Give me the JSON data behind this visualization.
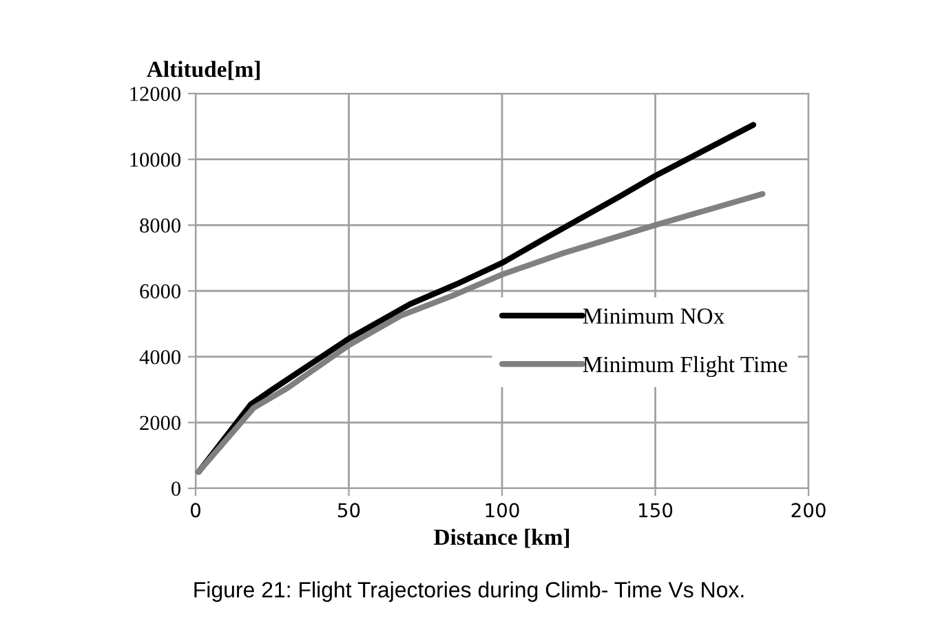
{
  "chart_data": {
    "type": "line",
    "xlabel": "Distance [km]",
    "ylabel": "Altitude[m]",
    "xlim": [
      0,
      200
    ],
    "xticks": [
      0,
      50,
      100,
      150,
      200
    ],
    "ylim": [
      0,
      12000
    ],
    "yticks": [
      0,
      2000,
      4000,
      6000,
      8000,
      10000,
      12000
    ],
    "grid": true,
    "legend": "right",
    "marker": "none",
    "line_style": "solid",
    "series": [
      {
        "name": "Minimum NOx",
        "color": "#000000",
        "x": [
          1,
          18,
          25,
          50,
          70,
          85,
          100,
          115,
          138,
          150,
          182
        ],
        "values": [
          500,
          2550,
          3000,
          4550,
          5600,
          6200,
          6850,
          7650,
          8850,
          9500,
          11050
        ]
      },
      {
        "name": "Minimum Flight Time",
        "color": "#808080",
        "x": [
          1,
          19,
          30,
          50,
          67,
          85,
          100,
          120,
          150,
          185
        ],
        "values": [
          500,
          2450,
          3050,
          4350,
          5250,
          5900,
          6500,
          7150,
          8000,
          8950
        ]
      }
    ],
    "annotations": [
      "Figure 21: Flight Trajectories during Climb- Time Vs Nox."
    ]
  }
}
